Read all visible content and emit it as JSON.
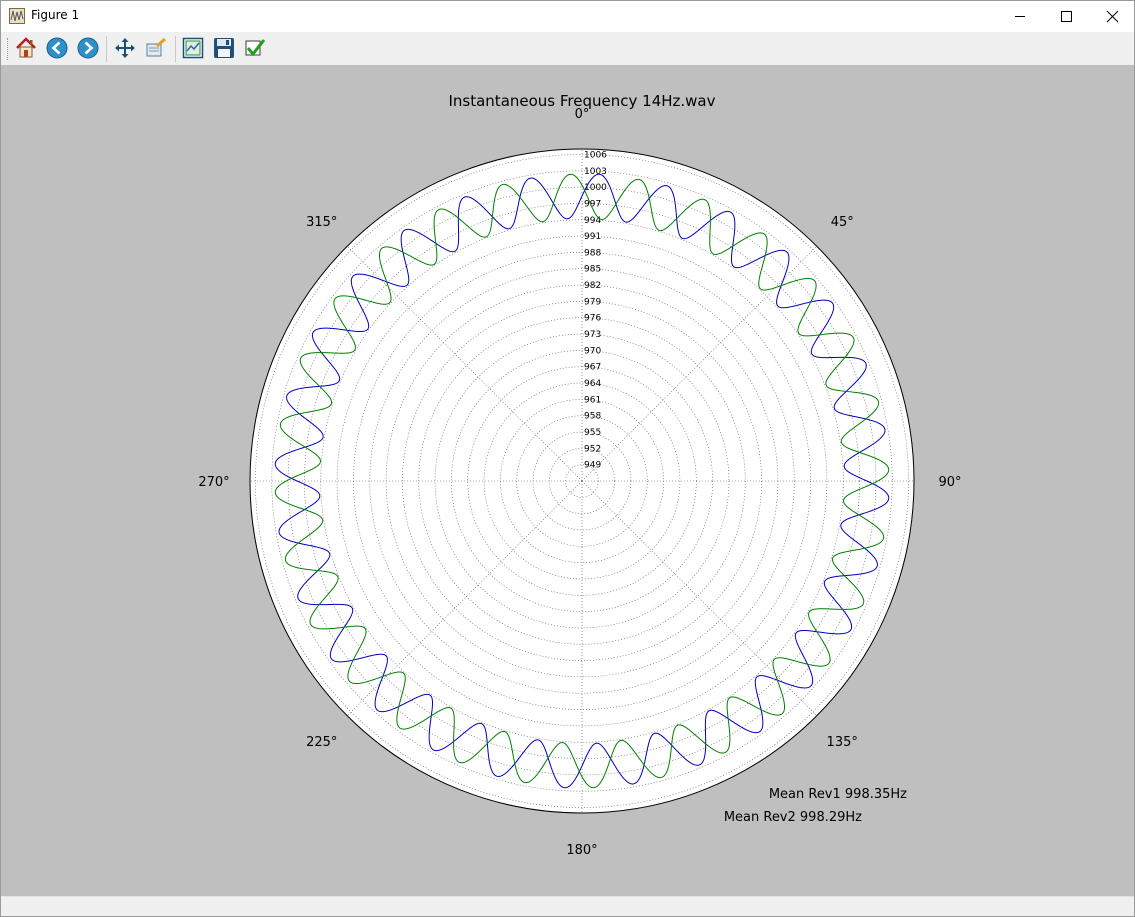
{
  "window": {
    "title": "Figure 1",
    "minimize_icon": "minimize-icon",
    "maximize_icon": "maximize-icon",
    "close_icon": "close-icon"
  },
  "toolbar": {
    "items": [
      {
        "name": "home-button",
        "icon": "home-icon"
      },
      {
        "name": "back-button",
        "icon": "arrow-left-icon"
      },
      {
        "name": "forward-button",
        "icon": "arrow-right-icon"
      },
      {
        "name": "pan-button",
        "icon": "move-arrows-icon"
      },
      {
        "name": "zoom-button",
        "icon": "zoom-rect-icon"
      },
      {
        "name": "subplots-button",
        "icon": "subplots-icon"
      },
      {
        "name": "save-button",
        "icon": "floppy-disk-icon"
      },
      {
        "name": "edit-button",
        "icon": "checkmark-icon"
      }
    ]
  },
  "chart_data": {
    "type": "line",
    "projection": "polar",
    "title": "Instantaneous Frequency  14Hz.wav",
    "theta_direction": "clockwise",
    "theta_zero": "top",
    "theta_ticks": [
      "0°",
      "45°",
      "90°",
      "135°",
      "180°",
      "225°",
      "270°",
      "315°"
    ],
    "r_ticks": [
      "949",
      "952",
      "955",
      "958",
      "961",
      "964",
      "967",
      "970",
      "973",
      "976",
      "979",
      "982",
      "985",
      "988",
      "991",
      "994",
      "997",
      "1000",
      "1003",
      "1006"
    ],
    "r_tick_values": [
      949,
      952,
      955,
      958,
      961,
      964,
      967,
      970,
      973,
      976,
      979,
      982,
      985,
      988,
      991,
      994,
      997,
      1000,
      1003,
      1006
    ],
    "rlim": [
      946,
      1007
    ],
    "grid": true,
    "series": [
      {
        "color": "#0000bf",
        "mean": 998.35,
        "amplitude": 4.1,
        "cycles_per_rev": 28,
        "phase_deg": 0
      },
      {
        "color": "#007f00",
        "mean": 998.29,
        "amplitude": 4.1,
        "cycles_per_rev": 28,
        "phase_deg": 150
      }
    ],
    "annotations": [
      "Mean Rev1 998.35Hz",
      "Mean Rev2 998.29Hz"
    ]
  }
}
